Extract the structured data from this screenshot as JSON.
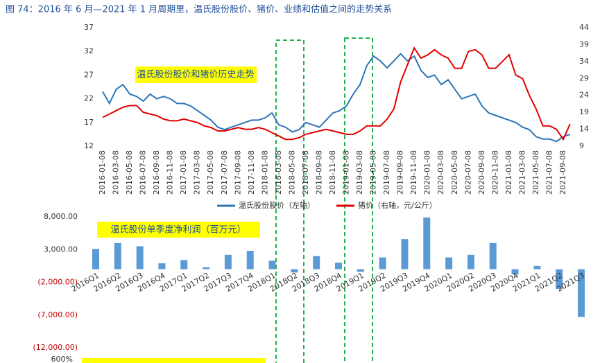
{
  "figure_title": "图 74：2016 年 6 月—2021 年 1 月周期里，温氏股份股价、猪价、业绩和估值之间的走势关系",
  "chart_data": [
    {
      "type": "line",
      "annotation": "温氏股份股价和猪价历史走势",
      "categories": [
        "2016-01-08",
        null,
        "2016-03-08",
        null,
        "2016-05-08",
        null,
        "2016-07-08",
        null,
        "2016-09-08",
        null,
        "2016-11-08",
        null,
        "2017-01-08",
        null,
        "2017-03-08",
        null,
        "2017-05-08",
        null,
        "2017-07-08",
        null,
        "2017-09-08",
        null,
        "2017-11-08",
        null,
        "2018-01-08",
        null,
        "2018-03-08",
        null,
        "2018-05-08",
        null,
        "2018-07-08",
        null,
        "2018-09-08",
        null,
        "2018-11-08",
        null,
        "2019-01-08",
        null,
        "2019-03-08",
        null,
        "2019-05-08",
        null,
        "2019-07-08",
        null,
        "2019-09-08",
        null,
        "2019-11-08",
        null,
        "2020-01-08",
        null,
        "2020-03-08",
        null,
        "2020-05-08",
        null,
        "2020-07-08",
        null,
        "2020-09-08",
        null,
        "2020-11-08",
        null,
        "2021-01-08",
        null,
        "2021-03-08",
        null,
        "2021-05-08",
        null,
        "2021-07-08",
        null,
        "2021-09-08",
        null
      ],
      "series": [
        {
          "name": "温氏股份股价（左轴）",
          "color": "#2e75b6",
          "values": [
            23.5,
            21,
            24,
            25,
            23,
            22.5,
            21.5,
            23,
            22,
            22.5,
            22,
            21,
            21,
            20.5,
            19.5,
            18.5,
            17.5,
            16,
            15.5,
            16,
            16.5,
            17,
            17.5,
            17.5,
            18,
            19,
            16.5,
            16,
            15,
            15.5,
            17,
            16.5,
            16,
            17.5,
            19,
            19.5,
            20.5,
            23,
            25,
            29,
            31,
            30,
            28.5,
            30,
            31.5,
            30,
            31,
            28,
            26.5,
            27,
            25,
            26,
            24,
            22,
            22.5,
            23,
            20.5,
            19,
            18.5,
            18,
            17.5,
            17,
            16,
            15.5,
            14,
            13.5,
            13.5,
            13,
            14,
            14.5
          ]
        },
        {
          "name": "猪价（右轴，元/公斤）",
          "color": "#e00000",
          "axis": "y2",
          "values": [
            17.5,
            18.5,
            19.5,
            20.5,
            21,
            21,
            19,
            18.5,
            18,
            17,
            16.5,
            16.5,
            17,
            16.5,
            16,
            15,
            14.5,
            13.5,
            13.5,
            14,
            14.5,
            14,
            14,
            14.5,
            14,
            13,
            12,
            11,
            11,
            11.5,
            12.5,
            13,
            13.5,
            14,
            13.5,
            13,
            12.5,
            12.5,
            13.5,
            15,
            15,
            15,
            17,
            20,
            28,
            33,
            38,
            35,
            36,
            37.5,
            36,
            35,
            32,
            32,
            37,
            37.5,
            36,
            32,
            32,
            34,
            36,
            30,
            29,
            24,
            20,
            15,
            15,
            14,
            11,
            15.5
          ]
        }
      ],
      "ylim": [
        12,
        37
      ],
      "yticks": [
        12,
        17,
        22,
        27,
        32,
        37
      ],
      "y2lim": [
        9,
        44
      ],
      "y2ticks": [
        9,
        14,
        19,
        24,
        29,
        34,
        39,
        44
      ]
    },
    {
      "type": "bar",
      "annotation": "温氏股份单季度净利润（百万元）",
      "color": "#5b9bd5",
      "negative_tick_color": "#c00000",
      "categories": [
        "2016Q1",
        "2016Q2",
        "2016Q3",
        "2016Q4",
        "2017Q1",
        "2017Q2",
        "2017Q3",
        "2017Q4",
        "2018Q1",
        "2018Q2",
        "2018Q3",
        "2018Q4",
        "2019Q1",
        "2019Q2",
        "2019Q3",
        "2019Q4",
        "2020Q1",
        "2020Q2",
        "2020Q3",
        "2020Q4",
        "2021Q1",
        "2021Q2",
        "2021Q3"
      ],
      "values": [
        3100,
        4000,
        3500,
        900,
        1400,
        300,
        2200,
        2800,
        1300,
        -500,
        2000,
        1000,
        -400,
        1800,
        4600,
        7900,
        1800,
        2200,
        4000,
        -800,
        500,
        -3000,
        -7300
      ],
      "ylim": [
        -12000,
        8000
      ],
      "yticks": [
        {
          "value": -12000,
          "label": "(12,000.00)"
        },
        {
          "value": -7000,
          "label": "(7,000.00)"
        },
        {
          "value": -2000,
          "label": "(2,000.00)"
        },
        {
          "value": 3000,
          "label": "3,000.00"
        },
        {
          "value": 8000,
          "label": "8,000.00"
        }
      ]
    },
    {
      "yticks": [
        {
          "value": 600,
          "label": "600%"
        }
      ]
    }
  ]
}
